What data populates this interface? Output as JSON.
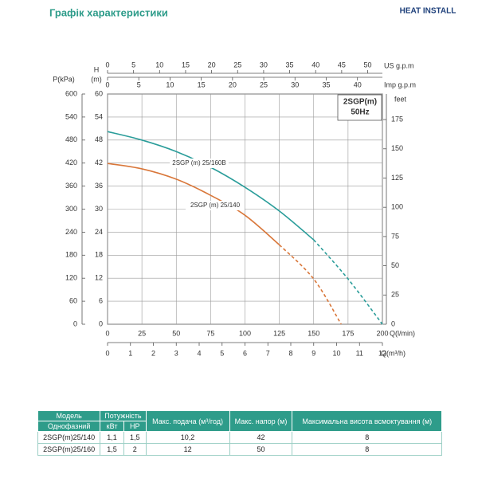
{
  "header": {
    "title": "Графік характеристики",
    "logo": "HEAT INSTALL"
  },
  "chart_data": {
    "type": "line",
    "xlim": [
      0,
      200
    ],
    "xticks": [
      0,
      25,
      50,
      75,
      100,
      125,
      150,
      175,
      200
    ],
    "x_label": "Q(l/min)",
    "ylim": [
      0,
      60
    ],
    "yticks": [
      0,
      6,
      12,
      18,
      24,
      30,
      36,
      42,
      48,
      54,
      60
    ],
    "y_label": "H",
    "y_unit": "(m)",
    "grid": true,
    "extra_axes": [
      {
        "label": "P(kPa)",
        "position": "left",
        "lim": [
          0,
          600
        ],
        "ticks": [
          0,
          60,
          120,
          180,
          240,
          300,
          360,
          420,
          480,
          540,
          600
        ]
      },
      {
        "label": "feet",
        "position": "right",
        "lim": [
          0,
          196.85
        ],
        "ticks": [
          0,
          25,
          50,
          75,
          100,
          125,
          150,
          175
        ]
      },
      {
        "label": "US g.p.m",
        "position": "top",
        "lim": [
          0,
          52.83
        ],
        "ticks": [
          0,
          5,
          10,
          15,
          20,
          25,
          30,
          35,
          40,
          45,
          50
        ]
      },
      {
        "label": "Imp g.p.m",
        "position": "top-inner",
        "lim": [
          0,
          43.99
        ],
        "ticks": [
          0,
          5,
          10,
          15,
          20,
          25,
          30,
          35,
          40
        ]
      },
      {
        "label": "Q(m³/h)",
        "position": "bottom",
        "lim": [
          0,
          12
        ],
        "ticks": [
          0,
          1,
          2,
          3,
          4,
          5,
          6,
          7,
          8,
          9,
          10,
          11,
          12
        ]
      }
    ],
    "legend_box": [
      "2SGP(m)",
      "50Hz"
    ],
    "series": [
      {
        "name": "2SGP (m) 25/160B",
        "color": "#2a9d9a",
        "dashed_from": 150,
        "x": [
          0,
          25,
          50,
          75,
          100,
          125,
          150,
          175,
          200
        ],
        "values": [
          50.2,
          48,
          45,
          40.9,
          35.7,
          29.5,
          22,
          11.8,
          0
        ]
      },
      {
        "name": "2SGP (m) 25/140",
        "color": "#d9773a",
        "dashed_from": 125,
        "x": [
          0,
          25,
          50,
          75,
          100,
          125,
          150,
          170
        ],
        "values": [
          41.9,
          40.5,
          37.8,
          33.6,
          28.4,
          20.7,
          11.8,
          0
        ]
      }
    ]
  },
  "table": {
    "header": [
      "Модель",
      "Потужність",
      "Макс. подача (м³/год)",
      "Макс. напор (м)",
      "Максимальна висота всмоктування (м)"
    ],
    "subheader": [
      "Однофазний",
      "кВт",
      "HP"
    ],
    "rows": [
      [
        "2SGP(m)25/140",
        "1,1",
        "1,5",
        "10,2",
        "42",
        "8"
      ],
      [
        "2SGP(m)25/160",
        "1,5",
        "2",
        "12",
        "50",
        "8"
      ]
    ]
  }
}
